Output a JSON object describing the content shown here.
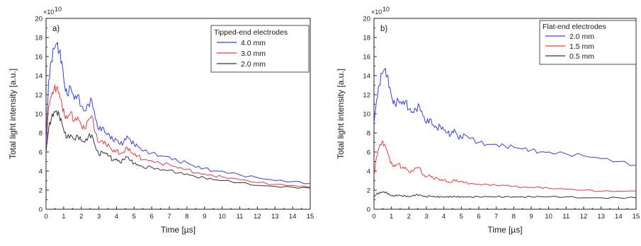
{
  "chart_data": [
    {
      "type": "line",
      "panel_label": "a)",
      "xlabel": "Time [µs]",
      "ylabel": "Total light intensity [a.u.]",
      "y_multiplier": "×10",
      "y_multiplier_exp": "10",
      "xlim": [
        0,
        15
      ],
      "ylim": [
        0,
        20
      ],
      "x_ticks": [
        "0",
        "1",
        "2",
        "3",
        "4",
        "5",
        "6",
        "7",
        "8",
        "9",
        "10",
        "11",
        "12",
        "13",
        "14",
        "15"
      ],
      "y_ticks": [
        "0",
        "2",
        "4",
        "6",
        "8",
        "10",
        "12",
        "14",
        "16",
        "18",
        "20"
      ],
      "grid": false,
      "legend": {
        "title": "Tipped-end electrodes",
        "position": "top-right"
      },
      "x": [
        0,
        0.15,
        0.3,
        0.45,
        0.6,
        0.75,
        0.9,
        1.05,
        1.2,
        1.4,
        1.6,
        1.8,
        2.0,
        2.2,
        2.4,
        2.6,
        2.8,
        3.0,
        3.2,
        3.4,
        3.6,
        3.8,
        4.0,
        4.2,
        4.4,
        4.6,
        4.8,
        5.0,
        5.2,
        5.5,
        6.0,
        6.5,
        7.0,
        7.5,
        8.0,
        8.5,
        9.0,
        9.5,
        10.0,
        11.0,
        12.0,
        13.0,
        14.0,
        15.0
      ],
      "series": [
        {
          "name": "4.0 mm",
          "color": "#3b3bf0",
          "values": [
            7.0,
            13.5,
            15.5,
            16.8,
            17.3,
            16.5,
            15.5,
            13.0,
            12.0,
            12.8,
            11.5,
            12.0,
            10.8,
            10.3,
            11.0,
            11.4,
            9.5,
            8.3,
            8.6,
            8.0,
            7.8,
            7.2,
            7.3,
            6.8,
            7.0,
            7.7,
            7.2,
            6.8,
            6.6,
            6.1,
            5.9,
            5.6,
            5.5,
            5.0,
            4.9,
            4.4,
            4.3,
            4.0,
            4.0,
            3.6,
            3.3,
            3.0,
            2.9,
            2.7
          ]
        },
        {
          "name": "3.0 mm",
          "color": "#ee3b3b",
          "values": [
            6.0,
            10.8,
            11.8,
            12.5,
            12.8,
            12.2,
            11.0,
            9.8,
            9.5,
            10.2,
            9.2,
            9.7,
            8.8,
            8.4,
            9.3,
            9.8,
            8.0,
            7.0,
            7.2,
            6.8,
            6.6,
            6.0,
            6.2,
            5.8,
            6.0,
            6.5,
            6.0,
            5.7,
            5.6,
            5.2,
            5.1,
            4.8,
            4.7,
            4.3,
            4.2,
            3.8,
            3.7,
            3.5,
            3.4,
            3.1,
            2.8,
            2.6,
            2.5,
            2.3
          ]
        },
        {
          "name": "2.0 mm",
          "color": "#333333",
          "values": [
            6.0,
            8.5,
            9.5,
            10.2,
            10.3,
            9.8,
            9.0,
            8.0,
            7.5,
            7.8,
            7.3,
            7.7,
            7.2,
            7.0,
            7.6,
            7.8,
            6.6,
            5.7,
            6.0,
            5.8,
            5.6,
            5.1,
            5.3,
            4.9,
            5.2,
            5.5,
            5.1,
            4.8,
            4.7,
            4.4,
            4.4,
            4.1,
            4.1,
            3.8,
            3.7,
            3.4,
            3.3,
            3.1,
            3.0,
            2.8,
            2.5,
            2.4,
            2.3,
            2.2
          ]
        }
      ]
    },
    {
      "type": "line",
      "panel_label": "b)",
      "xlabel": "Time [µs]",
      "ylabel": "Total light intensity [a.u.]",
      "y_multiplier": "×10",
      "y_multiplier_exp": "10",
      "xlim": [
        0,
        15
      ],
      "ylim": [
        0,
        20
      ],
      "x_ticks": [
        "0",
        "1",
        "2",
        "3",
        "4",
        "5",
        "6",
        "7",
        "8",
        "9",
        "10",
        "11",
        "12",
        "13",
        "14",
        "15"
      ],
      "y_ticks": [
        "0",
        "2",
        "4",
        "6",
        "8",
        "10",
        "12",
        "14",
        "16",
        "18",
        "20"
      ],
      "grid": false,
      "legend": {
        "title": "Flat-end electrodes",
        "position": "top-right"
      },
      "x": [
        0,
        0.15,
        0.3,
        0.45,
        0.6,
        0.75,
        0.9,
        1.05,
        1.2,
        1.4,
        1.6,
        1.8,
        2.0,
        2.2,
        2.4,
        2.6,
        2.8,
        3.0,
        3.2,
        3.4,
        3.6,
        3.8,
        4.0,
        4.2,
        4.4,
        4.6,
        4.8,
        5.0,
        5.2,
        5.5,
        6.0,
        6.5,
        7.0,
        7.5,
        8.0,
        8.5,
        9.0,
        9.5,
        10.0,
        11.0,
        12.0,
        13.0,
        14.0,
        15.0
      ],
      "series": [
        {
          "name": "2.0 mm",
          "color": "#3b3bf0",
          "values": [
            9.0,
            11.5,
            13.0,
            14.2,
            14.6,
            14.0,
            12.8,
            11.5,
            11.0,
            11.4,
            11.0,
            11.3,
            10.5,
            10.2,
            10.5,
            10.8,
            9.8,
            9.0,
            9.5,
            8.8,
            8.5,
            8.7,
            8.3,
            8.0,
            7.8,
            8.4,
            7.6,
            7.5,
            7.8,
            7.4,
            7.0,
            6.8,
            6.8,
            6.6,
            6.5,
            6.3,
            6.2,
            6.0,
            6.0,
            5.8,
            5.6,
            5.3,
            5.0,
            4.6
          ]
        },
        {
          "name": "1.5 mm",
          "color": "#ee3b3b",
          "values": [
            3.5,
            5.5,
            6.5,
            7.0,
            6.8,
            6.2,
            5.2,
            4.6,
            4.5,
            4.8,
            4.3,
            4.4,
            3.9,
            4.0,
            4.3,
            4.4,
            3.6,
            3.4,
            3.6,
            3.2,
            3.3,
            3.0,
            3.1,
            2.9,
            2.8,
            3.1,
            2.9,
            2.9,
            2.8,
            2.7,
            2.6,
            2.6,
            2.5,
            2.5,
            2.4,
            2.3,
            2.3,
            2.3,
            2.2,
            2.1,
            2.0,
            1.9,
            1.9,
            1.9
          ]
        },
        {
          "name": "0.5 mm",
          "color": "#333333",
          "values": [
            1.3,
            1.6,
            1.7,
            1.8,
            1.8,
            1.7,
            1.5,
            1.4,
            1.4,
            1.5,
            1.4,
            1.4,
            1.3,
            1.4,
            1.5,
            1.5,
            1.4,
            1.3,
            1.4,
            1.3,
            1.3,
            1.3,
            1.3,
            1.3,
            1.3,
            1.3,
            1.3,
            1.3,
            1.3,
            1.3,
            1.3,
            1.3,
            1.3,
            1.3,
            1.3,
            1.3,
            1.3,
            1.3,
            1.3,
            1.3,
            1.2,
            1.2,
            1.2,
            1.2
          ]
        }
      ]
    }
  ]
}
